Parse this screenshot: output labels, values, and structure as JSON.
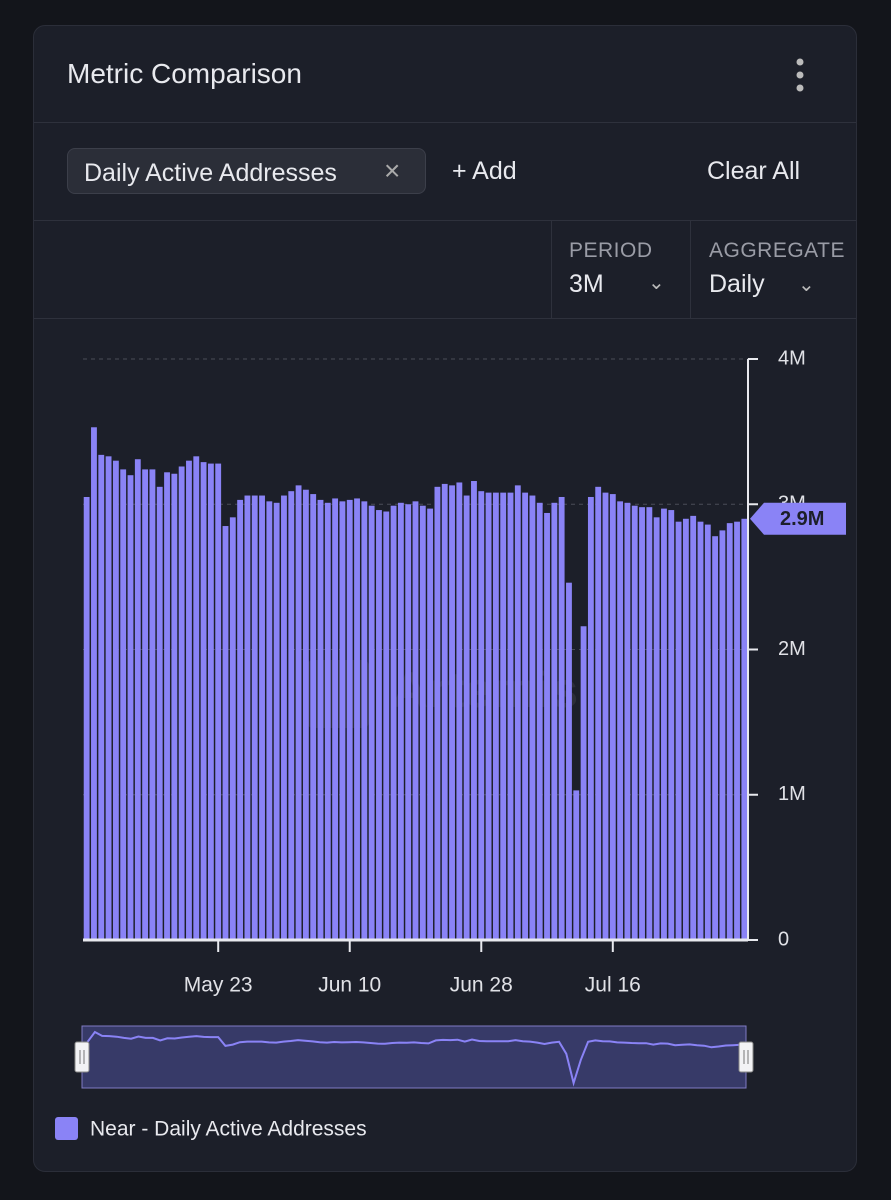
{
  "header": {
    "title": "Metric Comparison"
  },
  "controls": {
    "chip": "Daily Active Addresses",
    "add": "+ Add",
    "clear": "Clear All",
    "period_label": "PERIOD",
    "period_value": "3M",
    "aggregate_label": "AGGREGATE",
    "aggregate_value": "Daily"
  },
  "chart_data": {
    "type": "bar",
    "watermark": "Artemis",
    "categories": [
      null,
      null,
      null,
      null,
      null,
      null,
      null,
      null,
      null,
      null,
      null,
      null,
      null,
      null,
      null,
      null,
      null,
      null,
      "May 23",
      null,
      null,
      null,
      null,
      null,
      null,
      null,
      null,
      null,
      null,
      null,
      null,
      null,
      null,
      null,
      null,
      null,
      "Jun 10",
      null,
      null,
      null,
      null,
      null,
      null,
      null,
      null,
      null,
      null,
      null,
      null,
      null,
      null,
      null,
      null,
      null,
      "Jun 28",
      null,
      null,
      null,
      null,
      null,
      null,
      null,
      null,
      null,
      null,
      null,
      null,
      null,
      null,
      null,
      null,
      null,
      "Jul 16",
      null,
      null,
      null,
      null,
      null,
      null,
      null,
      null,
      null,
      null,
      null,
      null,
      null,
      null,
      null,
      null,
      null,
      null
    ],
    "series": [
      {
        "name": "Near - Daily Active Addresses",
        "color": "#8a83f6",
        "values": [
          3050000,
          3530000,
          3340000,
          3330000,
          3300000,
          3240000,
          3200000,
          3310000,
          3240000,
          3240000,
          3120000,
          3220000,
          3210000,
          3260000,
          3300000,
          3330000,
          3290000,
          3280000,
          3280000,
          2850000,
          2910000,
          3030000,
          3060000,
          3060000,
          3060000,
          3020000,
          3010000,
          3060000,
          3090000,
          3130000,
          3100000,
          3070000,
          3030000,
          3010000,
          3040000,
          3020000,
          3030000,
          3040000,
          3020000,
          2990000,
          2960000,
          2950000,
          2990000,
          3010000,
          3000000,
          3020000,
          2990000,
          2970000,
          3120000,
          3140000,
          3130000,
          3150000,
          3060000,
          3160000,
          3090000,
          3080000,
          3080000,
          3080000,
          3080000,
          3130000,
          3080000,
          3060000,
          3010000,
          2940000,
          3010000,
          3050000,
          2460000,
          1030000,
          2160000,
          3050000,
          3120000,
          3080000,
          3070000,
          3020000,
          3010000,
          2990000,
          2980000,
          2980000,
          2910000,
          2970000,
          2960000,
          2880000,
          2900000,
          2920000,
          2880000,
          2860000,
          2780000,
          2820000,
          2870000,
          2880000,
          2900000
        ]
      }
    ],
    "current_value": {
      "value": 2900000,
      "label": "2.9M"
    },
    "ylim": [
      0,
      4000000
    ],
    "yticks": [
      0,
      {
        "value": 1000000,
        "label": "1M"
      },
      {
        "value": 2000000,
        "label": "2M"
      },
      {
        "value": 3000000,
        "label": "3M"
      },
      {
        "value": 4000000,
        "label": "4M"
      }
    ],
    "grid": true
  }
}
